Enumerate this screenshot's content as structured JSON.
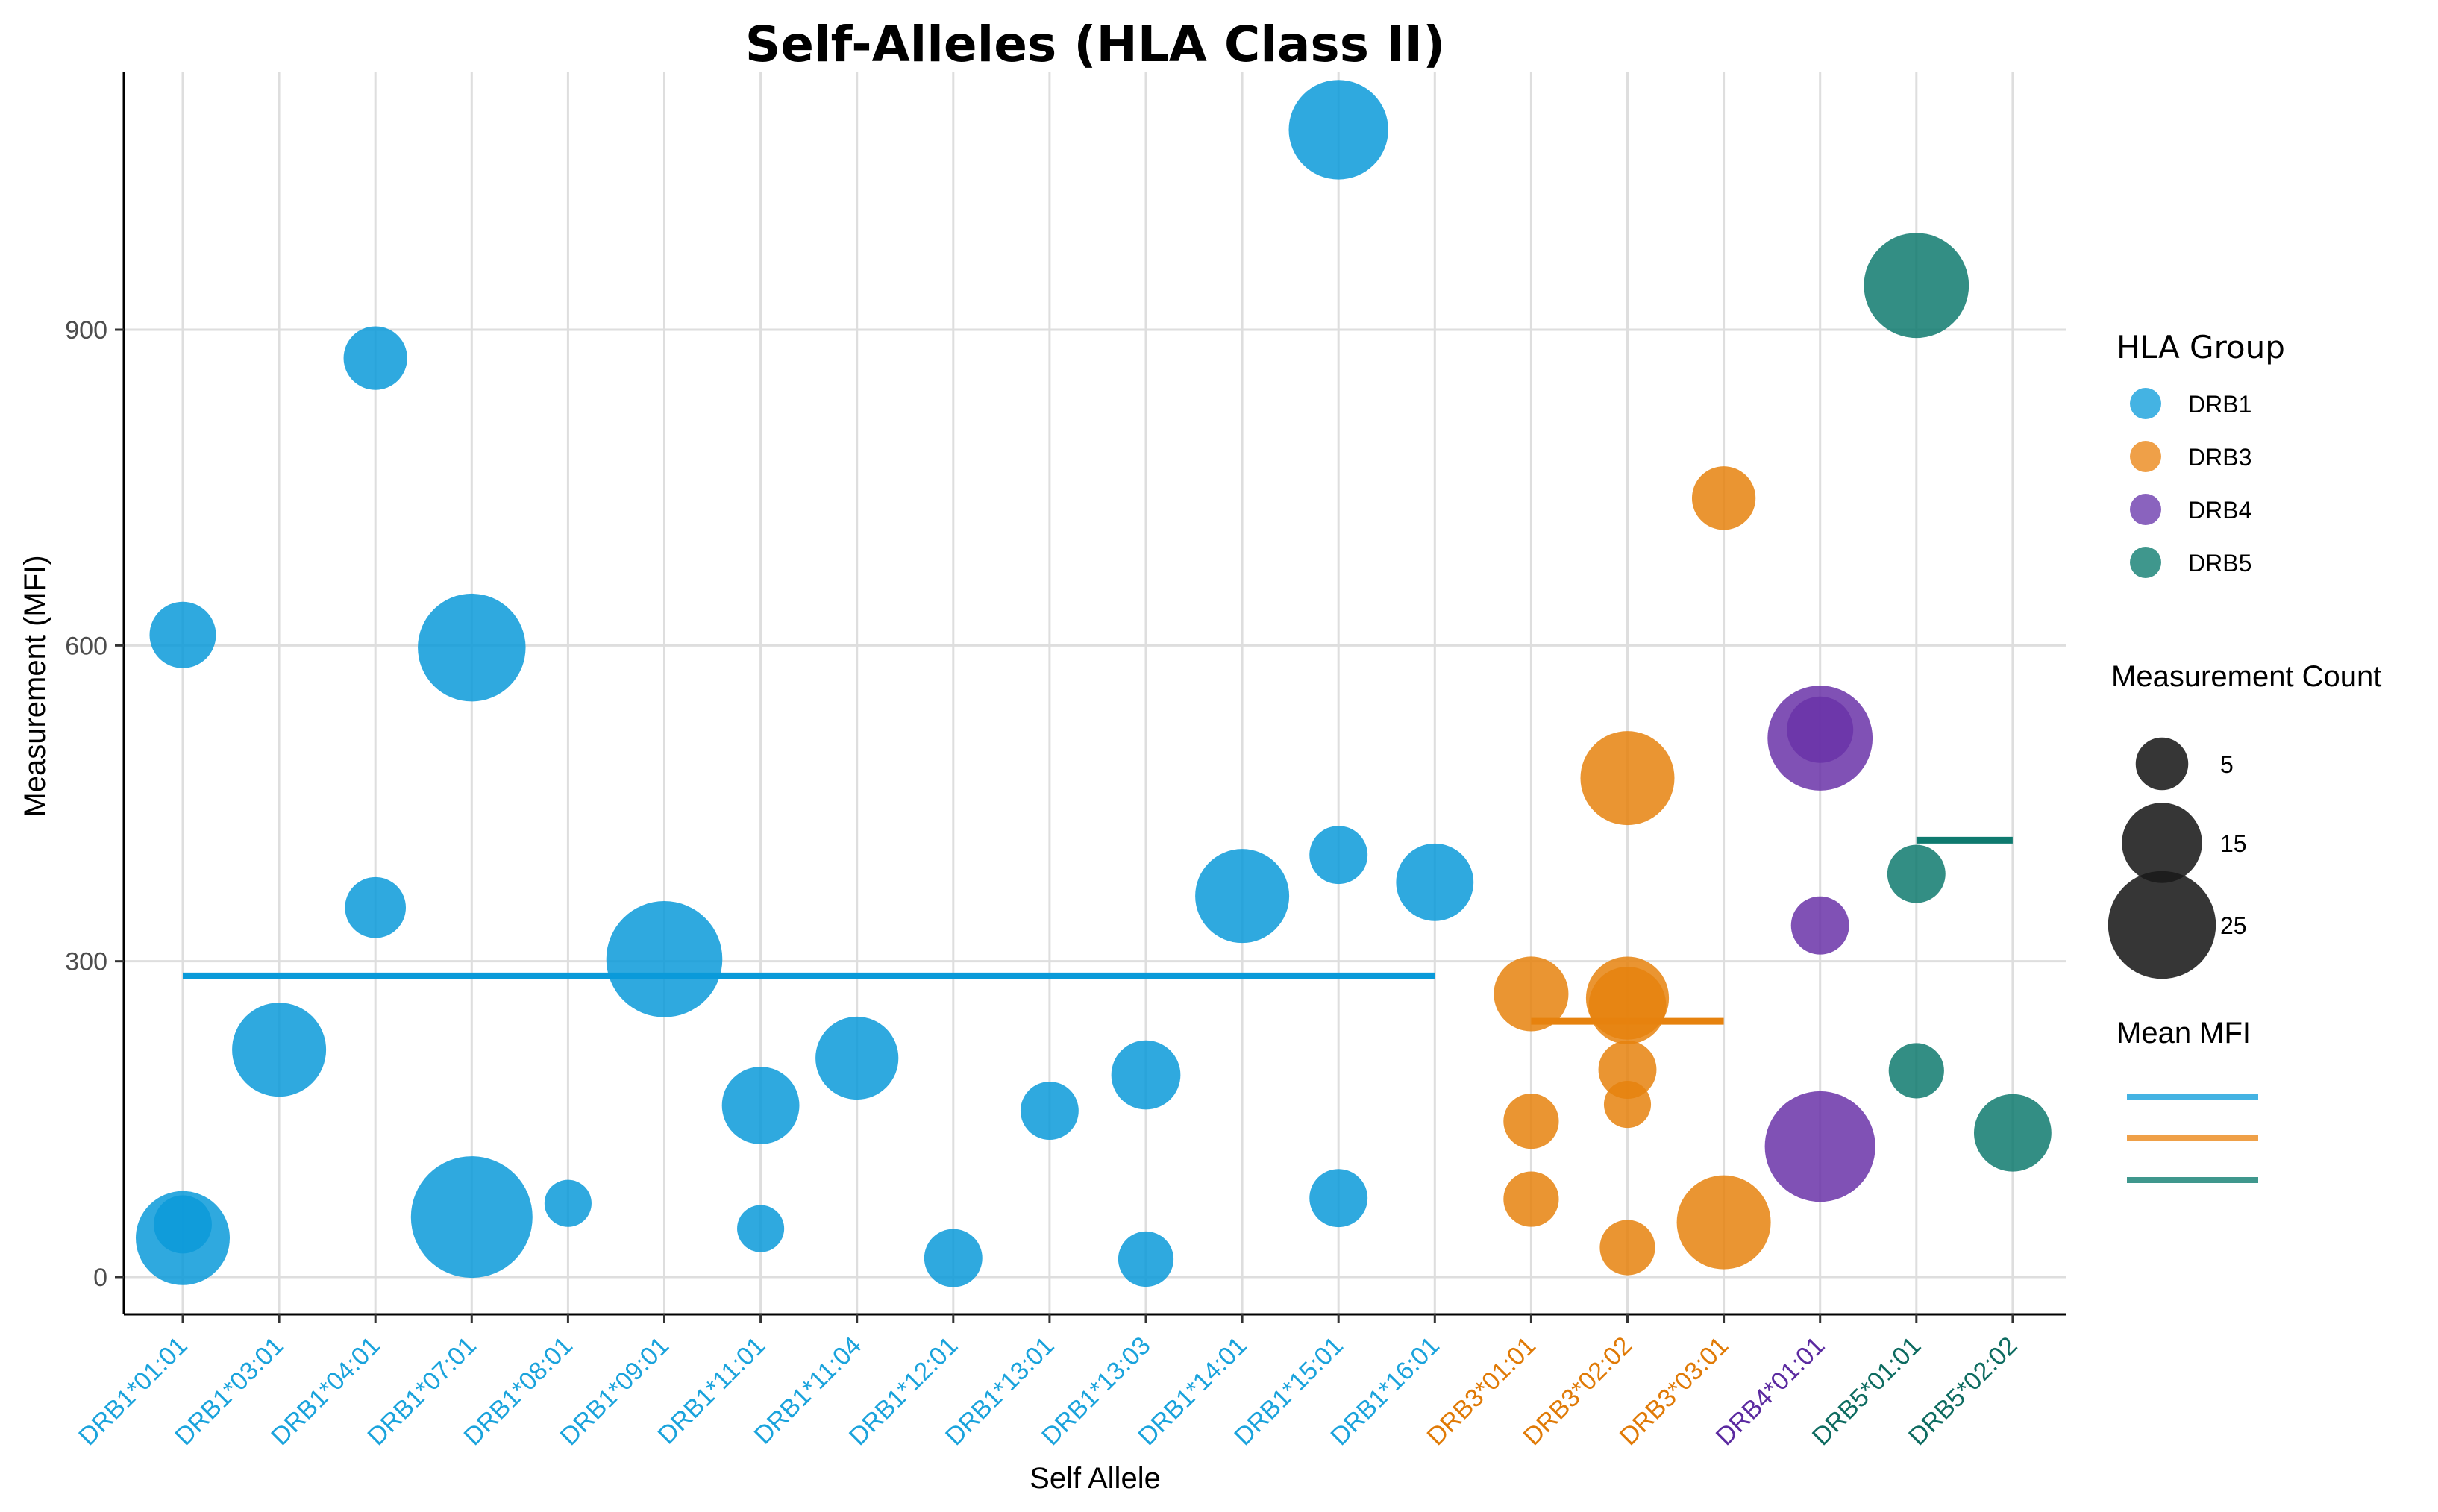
{
  "chart_data": {
    "type": "scatter",
    "title": "Self-Alleles (HLA Class II)",
    "xlabel": "Self Allele",
    "ylabel": "Measurement (MFI)",
    "ylim": [
      -35,
      1135
    ],
    "yticks": [
      0,
      300,
      600,
      900
    ],
    "grid": true,
    "categories": [
      "DRB1*01:01",
      "DRB1*03:01",
      "DRB1*04:01",
      "DRB1*07:01",
      "DRB1*08:01",
      "DRB1*09:01",
      "DRB1*11:01",
      "DRB1*11:04",
      "DRB1*12:01",
      "DRB1*13:01",
      "DRB1*13:03",
      "DRB1*14:01",
      "DRB1*15:01",
      "DRB1*16:01",
      "DRB3*01:01",
      "DRB3*02:02",
      "DRB3*03:01",
      "DRB4*01:01",
      "DRB5*01:01",
      "DRB5*02:02"
    ],
    "category_groups": [
      "DRB1",
      "DRB1",
      "DRB1",
      "DRB1",
      "DRB1",
      "DRB1",
      "DRB1",
      "DRB1",
      "DRB1",
      "DRB1",
      "DRB1",
      "DRB1",
      "DRB1",
      "DRB1",
      "DRB3",
      "DRB3",
      "DRB3",
      "DRB4",
      "DRB5",
      "DRB5"
    ],
    "group_colors": {
      "DRB1": "#0a9ad9",
      "DRB3": "#e6820e",
      "DRB4": "#6a32a8",
      "DRB5": "#0f7a6f"
    },
    "legend_colors": {
      "DRB1": "#44b3e3",
      "DRB3": "#efa048",
      "DRB4": "#8a63be",
      "DRB5": "#3f978d"
    },
    "tick_colors": {
      "DRB1": "#1aa3dc",
      "DRB3": "#e07a06",
      "DRB4": "#5b2aa0",
      "DRB5": "#0d6b60"
    },
    "series": [
      {
        "name": "DRB1",
        "points": [
          {
            "x": "DRB1*01:01",
            "y": 610,
            "count": 10
          },
          {
            "x": "DRB1*01:01",
            "y": 50,
            "count": 7
          },
          {
            "x": "DRB1*01:01",
            "y": 37,
            "count": 20
          },
          {
            "x": "DRB1*03:01",
            "y": 216,
            "count": 20
          },
          {
            "x": "DRB1*04:01",
            "y": 873,
            "count": 9
          },
          {
            "x": "DRB1*04:01",
            "y": 351,
            "count": 8
          },
          {
            "x": "DRB1*07:01",
            "y": 598,
            "count": 25
          },
          {
            "x": "DRB1*07:01",
            "y": 57,
            "count": 30
          },
          {
            "x": "DRB1*08:01",
            "y": 70,
            "count": 3
          },
          {
            "x": "DRB1*09:01",
            "y": 302,
            "count": 28
          },
          {
            "x": "DRB1*11:01",
            "y": 163,
            "count": 14
          },
          {
            "x": "DRB1*11:01",
            "y": 46,
            "count": 3
          },
          {
            "x": "DRB1*11:04",
            "y": 208,
            "count": 16
          },
          {
            "x": "DRB1*12:01",
            "y": 18,
            "count": 7
          },
          {
            "x": "DRB1*13:01",
            "y": 158,
            "count": 7
          },
          {
            "x": "DRB1*13:03",
            "y": 192,
            "count": 11
          },
          {
            "x": "DRB1*13:03",
            "y": 17,
            "count": 6
          },
          {
            "x": "DRB1*14:01",
            "y": 362,
            "count": 20
          },
          {
            "x": "DRB1*15:01",
            "y": 1090,
            "count": 22
          },
          {
            "x": "DRB1*15:01",
            "y": 401,
            "count": 7
          },
          {
            "x": "DRB1*15:01",
            "y": 75,
            "count": 7
          },
          {
            "x": "DRB1*16:01",
            "y": 375,
            "count": 14
          }
        ]
      },
      {
        "name": "DRB3",
        "points": [
          {
            "x": "DRB3*01:01",
            "y": 269,
            "count": 13
          },
          {
            "x": "DRB3*01:01",
            "y": 148,
            "count": 6
          },
          {
            "x": "DRB3*01:01",
            "y": 74,
            "count": 6
          },
          {
            "x": "DRB3*02:02",
            "y": 474,
            "count": 20
          },
          {
            "x": "DRB3*02:02",
            "y": 265,
            "count": 16
          },
          {
            "x": "DRB3*02:02",
            "y": 258,
            "count": 14
          },
          {
            "x": "DRB3*02:02",
            "y": 197,
            "count": 7
          },
          {
            "x": "DRB3*02:02",
            "y": 164,
            "count": 3
          },
          {
            "x": "DRB3*02:02",
            "y": 28,
            "count": 6
          },
          {
            "x": "DRB3*03:01",
            "y": 740,
            "count": 9
          },
          {
            "x": "DRB3*03:01",
            "y": 52,
            "count": 20
          }
        ]
      },
      {
        "name": "DRB4",
        "points": [
          {
            "x": "DRB4*01:01",
            "y": 512,
            "count": 24
          },
          {
            "x": "DRB4*01:01",
            "y": 520,
            "count": 10
          },
          {
            "x": "DRB4*01:01",
            "y": 334,
            "count": 7
          },
          {
            "x": "DRB4*01:01",
            "y": 124,
            "count": 26
          }
        ]
      },
      {
        "name": "DRB5",
        "points": [
          {
            "x": "DRB5*01:01",
            "y": 942,
            "count": 24
          },
          {
            "x": "DRB5*01:01",
            "y": 383,
            "count": 7
          },
          {
            "x": "DRB5*01:01",
            "y": 196,
            "count": 6
          },
          {
            "x": "DRB5*02:02",
            "y": 137,
            "count": 14
          }
        ]
      }
    ],
    "mean_lines": [
      {
        "group": "DRB1",
        "x_start": "DRB1*01:01",
        "x_end": "DRB1*16:01",
        "y": 286
      },
      {
        "group": "DRB3",
        "x_start": "DRB3*01:01",
        "x_end": "DRB3*03:01",
        "y": 243
      },
      {
        "group": "DRB5",
        "x_start": "DRB5*01:01",
        "x_end": "DRB5*02:02",
        "y": 415
      }
    ],
    "legend": {
      "placement": "right",
      "group_title": "HLA Group",
      "groups": [
        "DRB1",
        "DRB3",
        "DRB4",
        "DRB5"
      ],
      "size_title": "Measurement Count",
      "sizes": [
        5,
        15,
        25
      ],
      "size_labels": [
        "5",
        "15",
        "25"
      ],
      "mean_title": "Mean MFI",
      "mean_groups": [
        "DRB1",
        "DRB3",
        "DRB5"
      ]
    }
  }
}
